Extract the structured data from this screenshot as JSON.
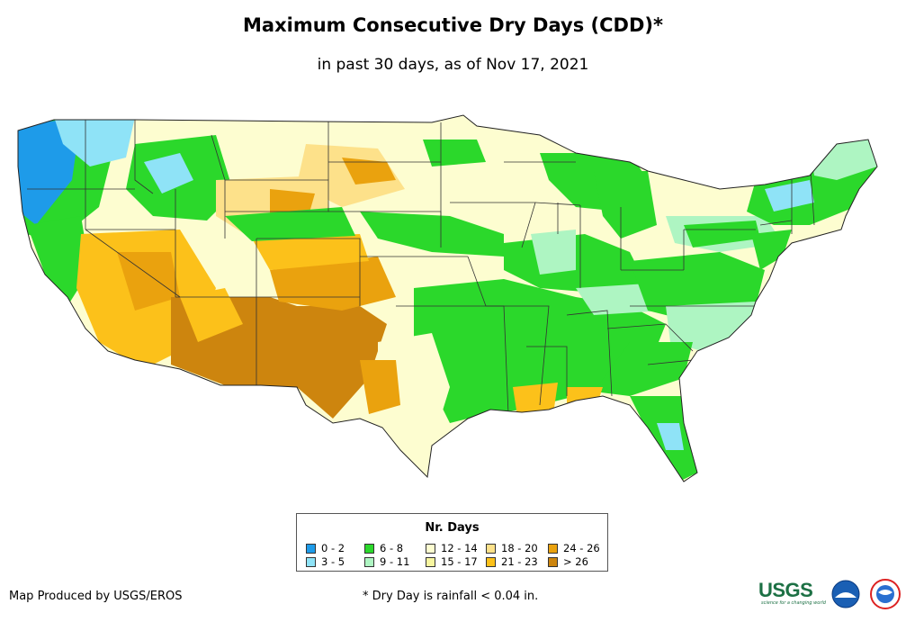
{
  "title": "Maximum Consecutive Dry Days (CDD)*",
  "subtitle": "in past 30 days, as of Nov 17, 2021",
  "legend": {
    "title": "Nr. Days",
    "items": [
      {
        "label": "0 - 2",
        "color": "#1e9be9"
      },
      {
        "label": "3 - 5",
        "color": "#8fe3f7"
      },
      {
        "label": "6 - 8",
        "color": "#2bd82b"
      },
      {
        "label": "9 - 11",
        "color": "#aef5c2"
      },
      {
        "label": "12 - 14",
        "color": "#fdfdd0"
      },
      {
        "label": "15 - 17",
        "color": "#f8f6a0"
      },
      {
        "label": "18 - 20",
        "color": "#fde18a"
      },
      {
        "label": "21 - 23",
        "color": "#fcc11a"
      },
      {
        "label": "24 - 26",
        "color": "#eaa20e"
      },
      {
        "label": "> 26",
        "color": "#cd850e"
      }
    ]
  },
  "footer": {
    "credit": "Map Produced by USGS/EROS",
    "note": "* Dry Day is rainfall < 0.04 in."
  },
  "logos": {
    "usgs_text": "USGS",
    "usgs_tagline": "science for a changing world"
  }
}
